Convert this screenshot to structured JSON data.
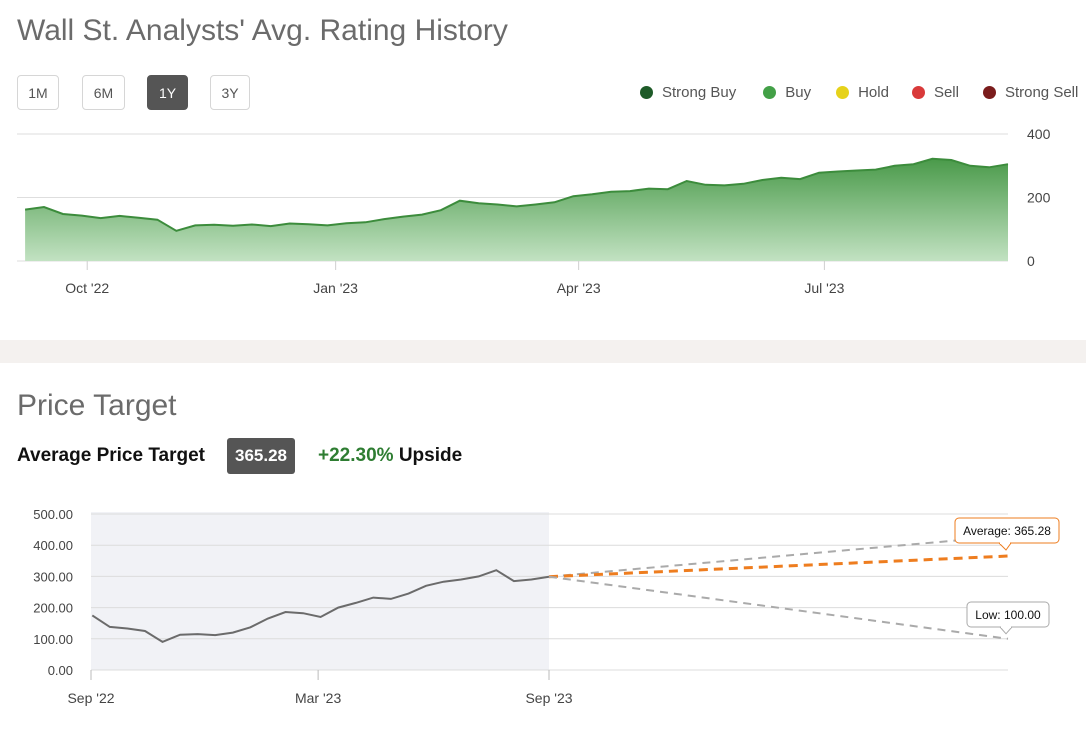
{
  "header": {
    "title": "Wall St. Analysts' Avg. Rating History"
  },
  "ranges": [
    {
      "label": "1M",
      "active": false
    },
    {
      "label": "6M",
      "active": false
    },
    {
      "label": "1Y",
      "active": true
    },
    {
      "label": "3Y",
      "active": false
    }
  ],
  "legend": [
    {
      "label": "Strong Buy",
      "color": "#1e5b28"
    },
    {
      "label": "Buy",
      "color": "#43a047"
    },
    {
      "label": "Hold",
      "color": "#e6d21a"
    },
    {
      "label": "Sell",
      "color": "#d93a3a"
    },
    {
      "label": "Strong Sell",
      "color": "#7a1c1c"
    }
  ],
  "price_target": {
    "title": "Price Target",
    "avg_label": "Average Price Target",
    "avg_value": "365.28",
    "upside_pct": "+22.30%",
    "upside_word": "Upside"
  },
  "chart_data": [
    {
      "type": "area",
      "title": "",
      "ylim": [
        0,
        400
      ],
      "yticks": [
        "400",
        "200",
        "0"
      ],
      "xticks": [
        "Oct '22",
        "Jan '23",
        "Apr '23",
        "Jul '23"
      ],
      "series_color": "#43a047",
      "x": [
        "2022-09-08",
        "2022-09-15",
        "2022-09-22",
        "2022-09-29",
        "2022-10-06",
        "2022-10-13",
        "2022-10-20",
        "2022-10-27",
        "2022-11-03",
        "2022-11-10",
        "2022-11-17",
        "2022-11-24",
        "2022-12-01",
        "2022-12-08",
        "2022-12-15",
        "2022-12-22",
        "2022-12-29",
        "2023-01-05",
        "2023-01-12",
        "2023-01-19",
        "2023-01-26",
        "2023-02-02",
        "2023-02-09",
        "2023-02-16",
        "2023-02-23",
        "2023-03-02",
        "2023-03-09",
        "2023-03-16",
        "2023-03-23",
        "2023-03-30",
        "2023-04-06",
        "2023-04-13",
        "2023-04-20",
        "2023-04-27",
        "2023-05-04",
        "2023-05-11",
        "2023-05-18",
        "2023-05-25",
        "2023-06-01",
        "2023-06-08",
        "2023-06-15",
        "2023-06-22",
        "2023-06-29",
        "2023-07-06",
        "2023-07-13",
        "2023-07-20",
        "2023-07-27",
        "2023-08-03",
        "2023-08-10",
        "2023-08-17",
        "2023-08-24",
        "2023-08-31",
        "2023-09-07"
      ],
      "values": [
        162,
        170,
        148,
        143,
        135,
        142,
        136,
        130,
        95,
        112,
        114,
        111,
        115,
        110,
        118,
        116,
        112,
        119,
        122,
        132,
        140,
        146,
        160,
        190,
        182,
        178,
        172,
        178,
        185,
        204,
        210,
        218,
        220,
        228,
        226,
        252,
        240,
        238,
        243,
        255,
        262,
        258,
        278,
        282,
        285,
        288,
        300,
        305,
        322,
        318,
        300,
        295,
        305
      ]
    },
    {
      "type": "line",
      "title": "",
      "ylim": [
        0,
        500
      ],
      "yticks": [
        "500.00",
        "400.00",
        "300.00",
        "200.00",
        "100.00",
        "0.00"
      ],
      "xticks": [
        "Sep '22",
        "Mar '23",
        "Sep '23"
      ],
      "series_color": "#6b6b6b",
      "x": [
        "2022-09-08",
        "2022-09-22",
        "2022-10-06",
        "2022-10-20",
        "2022-11-03",
        "2022-11-17",
        "2022-12-01",
        "2022-12-15",
        "2022-12-29",
        "2023-01-12",
        "2023-01-26",
        "2023-02-09",
        "2023-02-23",
        "2023-03-09",
        "2023-03-23",
        "2023-04-06",
        "2023-04-20",
        "2023-05-04",
        "2023-05-18",
        "2023-06-01",
        "2023-06-15",
        "2023-06-29",
        "2023-07-13",
        "2023-07-27",
        "2023-08-10",
        "2023-08-24",
        "2023-09-07"
      ],
      "values": [
        175,
        138,
        133,
        125,
        90,
        113,
        115,
        112,
        120,
        137,
        165,
        186,
        182,
        170,
        200,
        215,
        232,
        228,
        245,
        270,
        283,
        290,
        300,
        320,
        285,
        290,
        299
      ],
      "projections": [
        {
          "name": "High",
          "target": 430,
          "color": "#aaaaaa"
        },
        {
          "name": "Average",
          "target": 365.28,
          "color": "#ee7d1f",
          "label": "Average: 365.28"
        },
        {
          "name": "Low",
          "target": 100,
          "color": "#aaaaaa",
          "label": "Low: 100.00"
        }
      ]
    }
  ]
}
